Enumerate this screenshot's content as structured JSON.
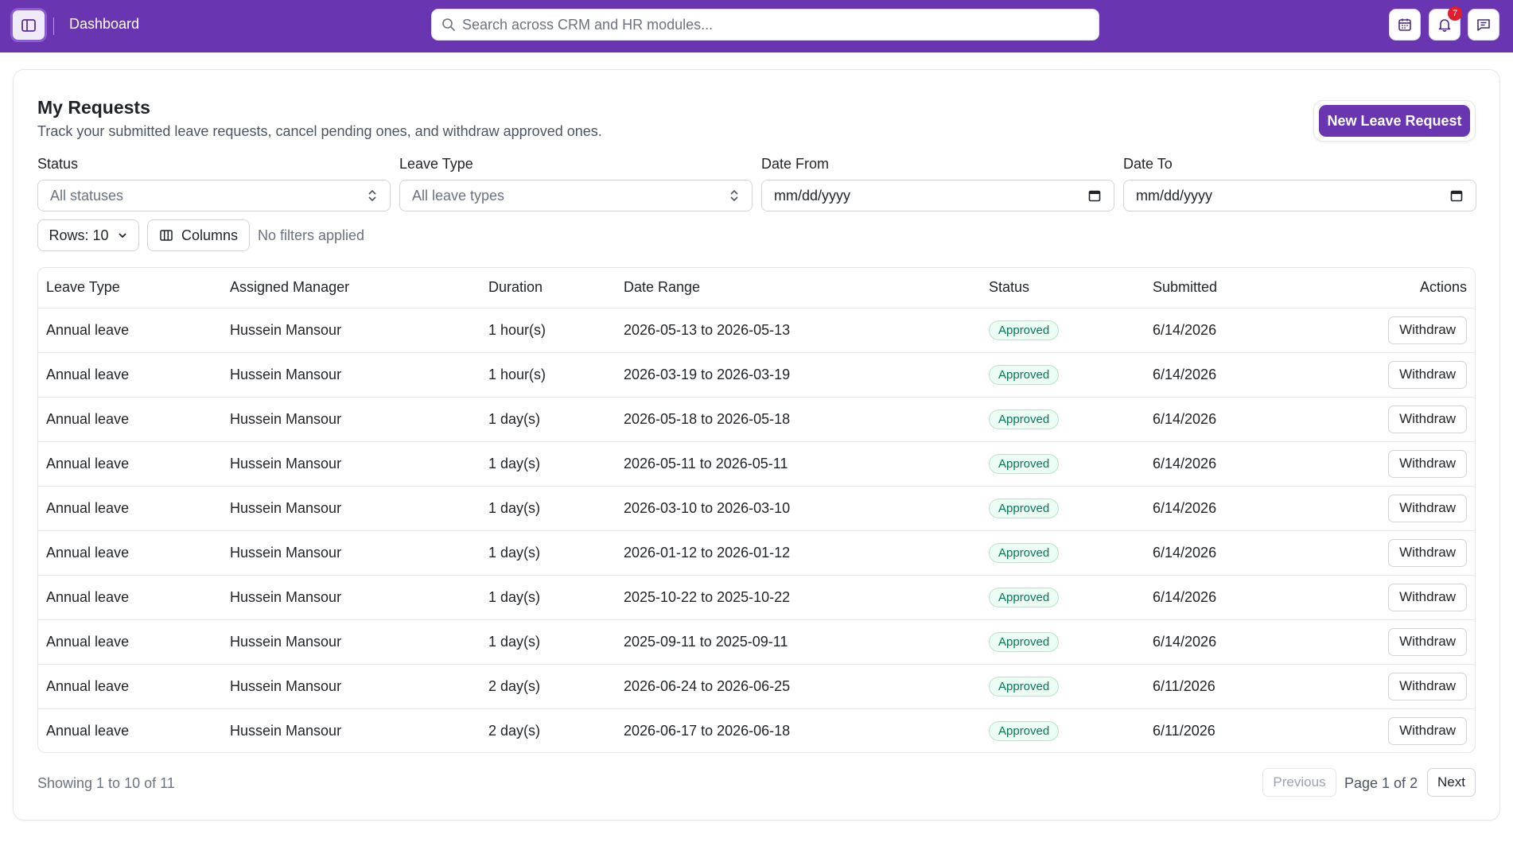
{
  "header": {
    "title": "Dashboard",
    "search_placeholder": "Search across CRM and HR modules...",
    "notification_count": "7",
    "colors": {
      "brand": "#6a35b0",
      "badge": "#e11d2e"
    },
    "icons": [
      "sidebar-toggle-icon",
      "calendar-icon",
      "bell-icon",
      "message-icon"
    ]
  },
  "page": {
    "title": "My Requests",
    "subtitle": "Track your submitted leave requests, cancel pending ones, and withdraw approved ones.",
    "new_button": "New Leave Request"
  },
  "filters": {
    "status": {
      "label": "Status",
      "placeholder": "All statuses"
    },
    "leave_type": {
      "label": "Leave Type",
      "placeholder": "All leave types"
    },
    "date_from": {
      "label": "Date From",
      "value": "mm/dd/yyyy"
    },
    "date_to": {
      "label": "Date To",
      "value": "mm/dd/yyyy"
    }
  },
  "toolbar": {
    "rows_label": "Rows: 10",
    "columns_label": "Columns",
    "filter_status": "No filters applied"
  },
  "table": {
    "headers": [
      "Leave Type",
      "Assigned Manager",
      "Duration",
      "Date Range",
      "Status",
      "Submitted",
      "Actions"
    ],
    "rows": [
      {
        "type": "Annual leave",
        "manager": "Hussein Mansour",
        "duration": "1 hour(s)",
        "range": "2026-05-13 to 2026-05-13",
        "status": "Approved",
        "submitted": "6/14/2026",
        "action": "Withdraw"
      },
      {
        "type": "Annual leave",
        "manager": "Hussein Mansour",
        "duration": "1 hour(s)",
        "range": "2026-03-19 to 2026-03-19",
        "status": "Approved",
        "submitted": "6/14/2026",
        "action": "Withdraw"
      },
      {
        "type": "Annual leave",
        "manager": "Hussein Mansour",
        "duration": "1 day(s)",
        "range": "2026-05-18 to 2026-05-18",
        "status": "Approved",
        "submitted": "6/14/2026",
        "action": "Withdraw"
      },
      {
        "type": "Annual leave",
        "manager": "Hussein Mansour",
        "duration": "1 day(s)",
        "range": "2026-05-11 to 2026-05-11",
        "status": "Approved",
        "submitted": "6/14/2026",
        "action": "Withdraw"
      },
      {
        "type": "Annual leave",
        "manager": "Hussein Mansour",
        "duration": "1 day(s)",
        "range": "2026-03-10 to 2026-03-10",
        "status": "Approved",
        "submitted": "6/14/2026",
        "action": "Withdraw"
      },
      {
        "type": "Annual leave",
        "manager": "Hussein Mansour",
        "duration": "1 day(s)",
        "range": "2026-01-12 to 2026-01-12",
        "status": "Approved",
        "submitted": "6/14/2026",
        "action": "Withdraw"
      },
      {
        "type": "Annual leave",
        "manager": "Hussein Mansour",
        "duration": "1 day(s)",
        "range": "2025-10-22 to 2025-10-22",
        "status": "Approved",
        "submitted": "6/14/2026",
        "action": "Withdraw"
      },
      {
        "type": "Annual leave",
        "manager": "Hussein Mansour",
        "duration": "1 day(s)",
        "range": "2025-09-11 to 2025-09-11",
        "status": "Approved",
        "submitted": "6/14/2026",
        "action": "Withdraw"
      },
      {
        "type": "Annual leave",
        "manager": "Hussein Mansour",
        "duration": "2 day(s)",
        "range": "2026-06-24 to 2026-06-25",
        "status": "Approved",
        "submitted": "6/11/2026",
        "action": "Withdraw"
      },
      {
        "type": "Annual leave",
        "manager": "Hussein Mansour",
        "duration": "2 day(s)",
        "range": "2026-06-17 to 2026-06-18",
        "status": "Approved",
        "submitted": "6/11/2026",
        "action": "Withdraw"
      }
    ]
  },
  "pagination": {
    "showing": "Showing 1 to 10 of 11",
    "previous": "Previous",
    "page_info": "Page 1 of 2",
    "next": "Next"
  }
}
